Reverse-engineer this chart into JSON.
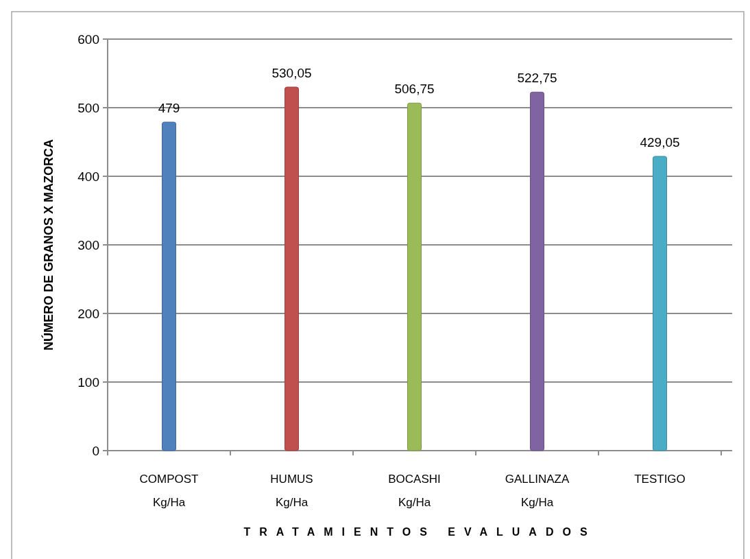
{
  "chart_data": {
    "type": "bar",
    "categories": [
      "COMPOST\nKg/Ha",
      "HUMUS\nKg/Ha",
      "BOCASHI\nKg/Ha",
      "GALLINAZA\nKg/Ha",
      "TESTIGO"
    ],
    "values": [
      479,
      530.05,
      506.75,
      522.75,
      429.05
    ],
    "colors": [
      "#4f81bd",
      "#c0504d",
      "#9bbb59",
      "#8064a2",
      "#4bacc6"
    ],
    "value_labels": [
      "479",
      "530,05",
      "506,75",
      "522,75",
      "429,05"
    ],
    "ylim": [
      0,
      600
    ],
    "yticks": [
      0,
      100,
      200,
      300,
      400,
      500,
      600
    ],
    "grid": "y",
    "xlabel": "TRATAMIENTOS EVALUADOS",
    "ylabel": "NÚMERO DE GRANOS X MAZORCA"
  }
}
